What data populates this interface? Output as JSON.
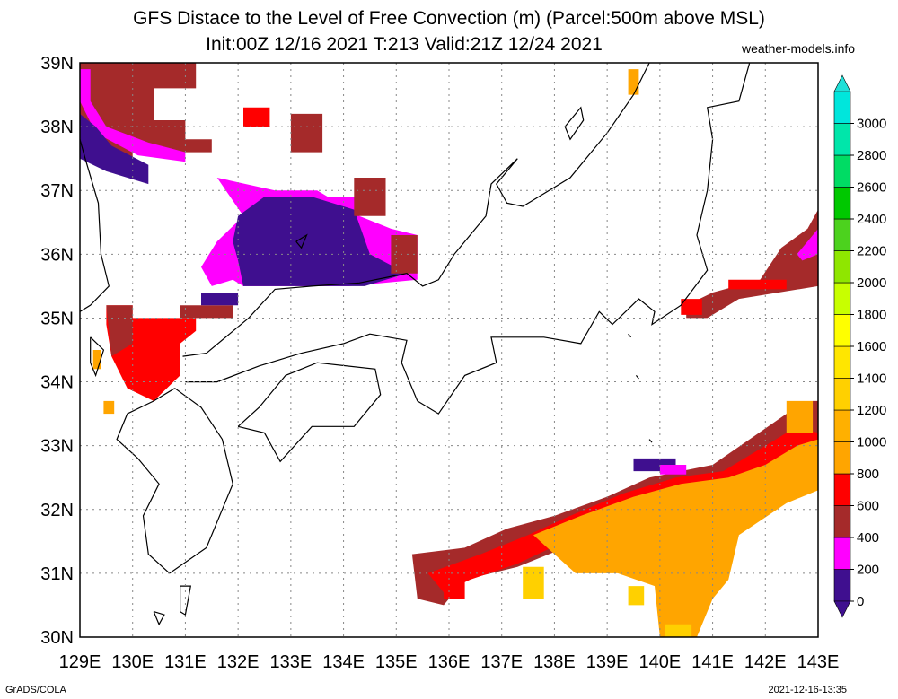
{
  "title_line1": "GFS Distace to the Level of Free Convection (m) (Parcel:500m above MSL)",
  "title_line2": "Init:00Z 12/16 2021 T:213 Valid:21Z 12/24 2021",
  "site": "weather-models.info",
  "credit": "GrADS/COLA",
  "timestamp": "2021-12-16-13:35",
  "map": {
    "lon_min": 129,
    "lon_max": 143,
    "lat_min": 30,
    "lat_max": 39,
    "lon_ticks": [
      "129E",
      "130E",
      "131E",
      "132E",
      "133E",
      "134E",
      "135E",
      "136E",
      "137E",
      "138E",
      "139E",
      "140E",
      "141E",
      "142E",
      "143E"
    ],
    "lat_ticks": [
      "30N",
      "31N",
      "32N",
      "33N",
      "34N",
      "35N",
      "36N",
      "37N",
      "38N",
      "39N"
    ]
  },
  "colorbar": {
    "levels": [
      "0",
      "200",
      "400",
      "600",
      "800",
      "1000",
      "1200",
      "1400",
      "1600",
      "1800",
      "2000",
      "2200",
      "2400",
      "2600",
      "2800",
      "3000"
    ],
    "colors": [
      "#3f0f8f",
      "#ff00ff",
      "#a52a2a",
      "#ff0000",
      "#ffa500",
      "#ffb000",
      "#ffd000",
      "#ffe600",
      "#ffff00",
      "#c8ff00",
      "#8fe600",
      "#4cd21e",
      "#00c800",
      "#00dc64",
      "#00e6aa",
      "#00e6dc"
    ],
    "low_color": "#3f0f8f",
    "high_color": "#20e0d8"
  }
}
